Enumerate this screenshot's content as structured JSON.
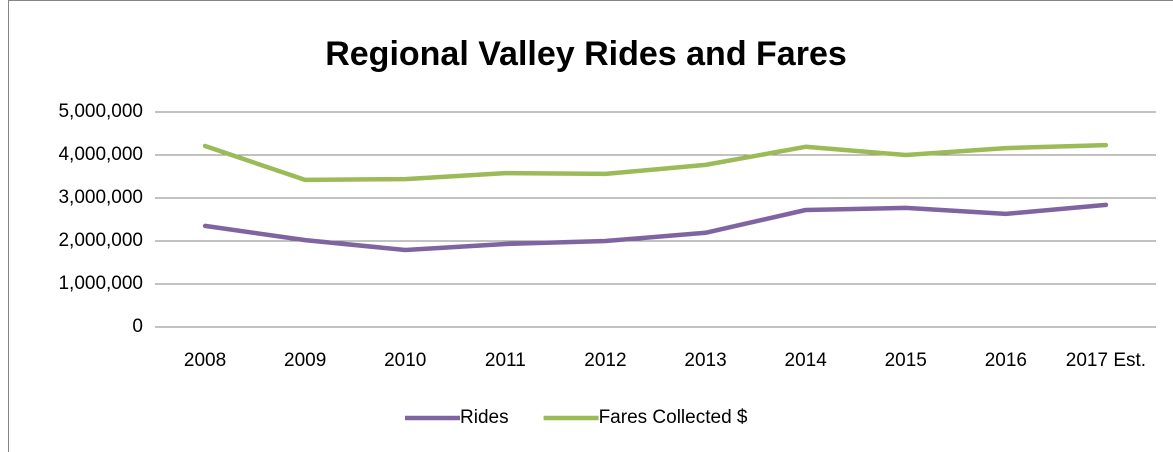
{
  "chart_data": {
    "type": "line",
    "title": "Regional Valley Rides and Fares",
    "categories": [
      "2008",
      "2009",
      "2010",
      "2011",
      "2012",
      "2013",
      "2014",
      "2015",
      "2016",
      "2017 Est."
    ],
    "series": [
      {
        "name": "Rides",
        "color": "#8064a2",
        "values": [
          2350000,
          2020000,
          1790000,
          1930000,
          2000000,
          2190000,
          2720000,
          2770000,
          2630000,
          2840000
        ]
      },
      {
        "name": "Fares Collected $",
        "color": "#9bbb59",
        "values": [
          4210000,
          3420000,
          3440000,
          3580000,
          3560000,
          3770000,
          4190000,
          4000000,
          4160000,
          4230000
        ]
      }
    ],
    "ylim": [
      0,
      5000000
    ],
    "yticks": [
      0,
      {
        "value": 1000000,
        "label": "1,000,000"
      },
      {
        "value": 2000000,
        "label": "2,000,000"
      },
      {
        "value": 3000000,
        "label": "3,000,000"
      },
      {
        "value": 4000000,
        "label": "4,000,000"
      },
      {
        "value": 5000000,
        "label": "5,000,000"
      }
    ],
    "grid": true,
    "legend": "bottom"
  }
}
